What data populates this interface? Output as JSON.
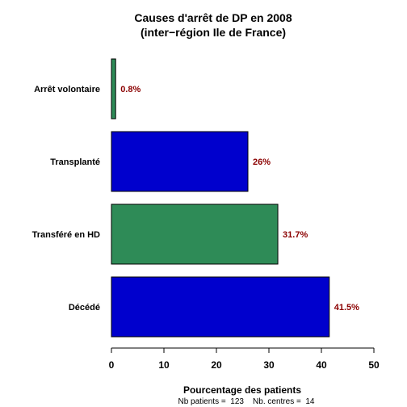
{
  "chart_data": {
    "type": "bar",
    "orientation": "horizontal",
    "title_line1": "Causes d'arrêt de DP en 2008",
    "title_line2": "(inter−région Ile de France)",
    "categories": [
      "Arrêt volontaire",
      "Transplanté",
      "Transféré en HD",
      "Décédé"
    ],
    "values": [
      0.8,
      26,
      31.7,
      41.5
    ],
    "value_labels": [
      "0.8%",
      "26%",
      "31.7%",
      "41.5%"
    ],
    "bar_colors": [
      "#2e8b57",
      "#0000cd",
      "#2e8b57",
      "#0000cd"
    ],
    "xlim": [
      0,
      50
    ],
    "xticks": [
      0,
      10,
      20,
      30,
      40,
      50
    ],
    "xlabel": "Pourcentage des patients",
    "footnote": "Nb patients =  123    Nb. centres =  14",
    "grid": false,
    "legend": "none"
  }
}
